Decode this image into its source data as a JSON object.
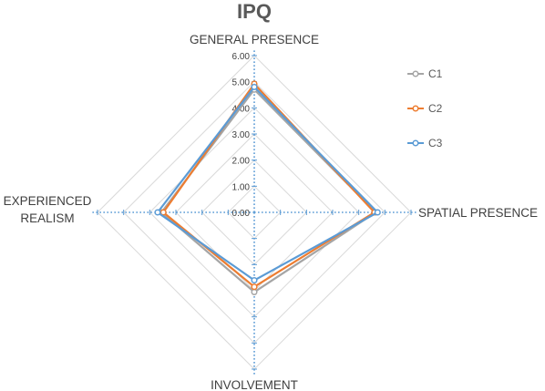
{
  "chart_data": {
    "type": "radar",
    "title": "IPQ",
    "axes": [
      "GENERAL PRESENCE",
      "SPATIAL PRESENCE",
      "INVOLVEMENT",
      "EXPERIENCED REALISM"
    ],
    "axis_label_lines": [
      [
        "GENERAL PRESENCE"
      ],
      [
        "SPATIAL PRESENCE"
      ],
      [
        "INVOLVEMENT"
      ],
      [
        "EXPERIENCED",
        "REALISM"
      ]
    ],
    "rlim": [
      0,
      6
    ],
    "ticks": [
      "0.00",
      "1.00",
      "2.00",
      "3.00",
      "4.00",
      "5.00",
      "6.00"
    ],
    "grid": true,
    "legend": "right",
    "series": [
      {
        "name": "C1",
        "color": "#a5a5a5",
        "values": [
          4.7,
          4.65,
          3.05,
          3.55
        ]
      },
      {
        "name": "C2",
        "color": "#ed7d31",
        "values": [
          4.92,
          4.6,
          2.85,
          3.48
        ]
      },
      {
        "name": "C3",
        "color": "#5b9bd5",
        "values": [
          4.8,
          4.72,
          2.6,
          3.7
        ]
      }
    ]
  }
}
